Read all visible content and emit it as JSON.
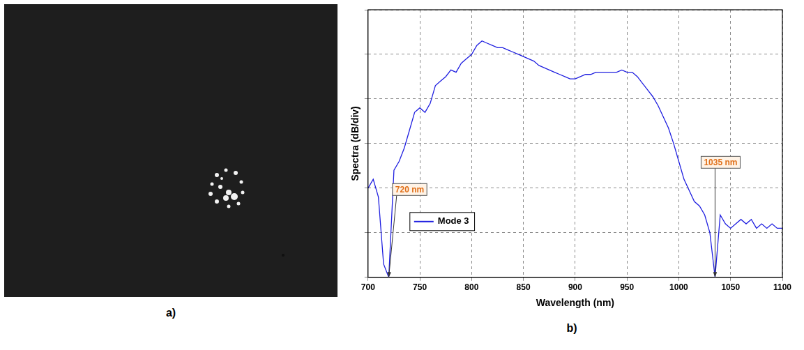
{
  "image_panel": {
    "label": "a)"
  },
  "chart_data": {
    "panel_label": "b)",
    "type": "line",
    "x_label": "Wavelength (nm)",
    "y_label": "Spectra (dB/div)",
    "x": [
      700,
      705,
      710,
      715,
      720,
      725,
      730,
      735,
      740,
      745,
      750,
      755,
      760,
      765,
      770,
      775,
      780,
      785,
      790,
      795,
      800,
      805,
      810,
      815,
      820,
      825,
      830,
      835,
      840,
      845,
      850,
      855,
      860,
      865,
      870,
      875,
      880,
      885,
      890,
      895,
      900,
      905,
      910,
      915,
      920,
      925,
      930,
      935,
      940,
      945,
      950,
      955,
      960,
      965,
      970,
      975,
      980,
      985,
      990,
      995,
      1000,
      1005,
      1010,
      1015,
      1020,
      1025,
      1030,
      1035,
      1040,
      1045,
      1050,
      1055,
      1060,
      1065,
      1070,
      1075,
      1080,
      1085,
      1090,
      1095,
      1100
    ],
    "series": [
      {
        "name": "Mode 3",
        "color": "#1f1fe0",
        "values": [
          2.0,
          2.2,
          1.8,
          0.3,
          0,
          2.4,
          2.6,
          2.9,
          3.3,
          3.7,
          3.8,
          3.7,
          3.9,
          4.3,
          4.4,
          4.5,
          4.65,
          4.6,
          4.8,
          4.9,
          5.0,
          5.2,
          5.3,
          5.25,
          5.2,
          5.15,
          5.15,
          5.1,
          5.05,
          5.0,
          4.95,
          4.9,
          4.85,
          4.75,
          4.7,
          4.65,
          4.6,
          4.55,
          4.5,
          4.45,
          4.45,
          4.5,
          4.55,
          4.55,
          4.6,
          4.6,
          4.6,
          4.6,
          4.6,
          4.65,
          4.6,
          4.6,
          4.5,
          4.35,
          4.2,
          4.05,
          3.85,
          3.6,
          3.35,
          3.0,
          2.6,
          2.2,
          1.95,
          1.7,
          1.6,
          1.4,
          1.0,
          0,
          1.4,
          1.2,
          1.1,
          1.2,
          1.3,
          1.2,
          1.3,
          1.1,
          1.2,
          1.1,
          1.2,
          1.1,
          1.1
        ]
      }
    ],
    "xlim": [
      700,
      1100
    ],
    "xticks": [
      700,
      750,
      800,
      850,
      900,
      950,
      1000,
      1050,
      1100
    ],
    "ylim": [
      0,
      6
    ],
    "yticks": [
      0,
      1,
      2,
      3,
      4,
      5,
      6
    ],
    "tick_labels": "x",
    "grid": true,
    "legend": "lower left",
    "annotations": [
      {
        "text": "720 nm",
        "x": 720,
        "y": 0
      },
      {
        "text": "1035 nm",
        "x": 1035,
        "y": 0
      }
    ]
  }
}
